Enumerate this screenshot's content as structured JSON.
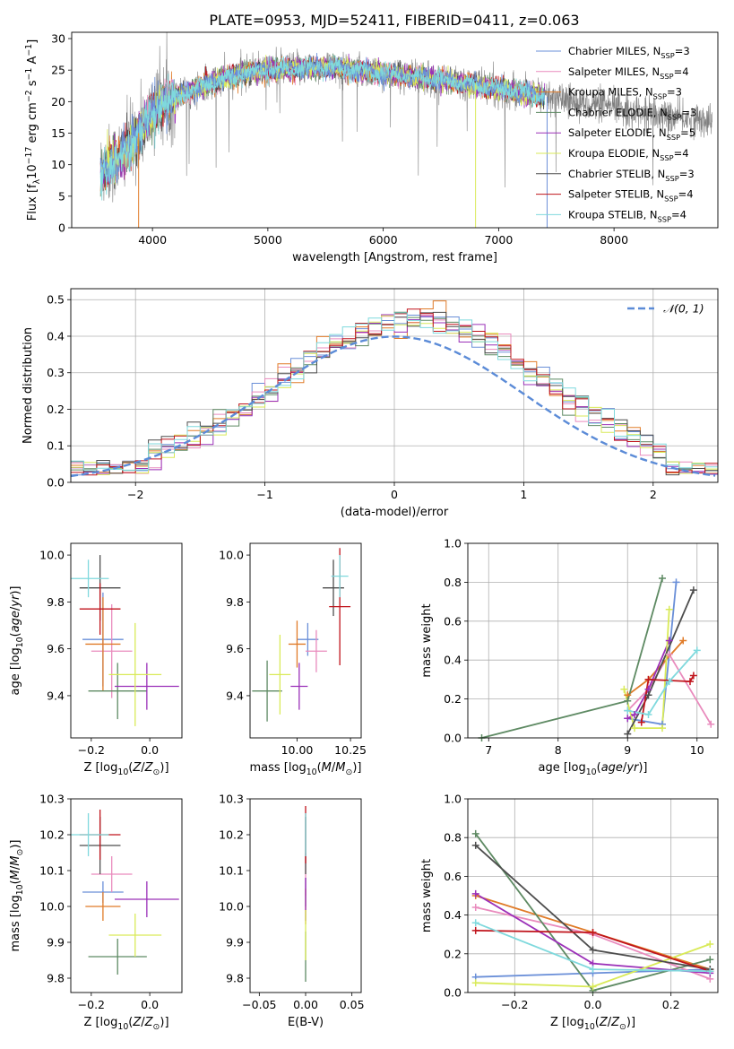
{
  "figure_title": "PLATE=0953, MJD=52411, FIBERID=0411, z=0.063",
  "colors": {
    "series": [
      "#6a8fd8",
      "#e98bbd",
      "#e07b28",
      "#5e8a63",
      "#9b30b8",
      "#d9ea58",
      "#4d4d4d",
      "#c0141c",
      "#7fd9dd"
    ],
    "normal": "#5b8bd7",
    "grid": "#b0b0b0",
    "spectrum_gray": "#808080"
  },
  "legend_names": [
    "Chabrier MILES, N<sub>SSP</sub>=3",
    "Salpeter MILES, N<sub>SSP</sub>=4",
    "Kroupa MILES, N<sub>SSP</sub>=3",
    "Chabrier ELODIE, N<sub>SSP</sub>=3",
    "Salpeter ELODIE, N<sub>SSP</sub>=5",
    "Kroupa ELODIE, N<sub>SSP</sub>=4",
    "Chabrier STELIB, N<sub>SSP</sub>=3",
    "Salpeter STELIB, N<sub>SSP</sub>=4",
    "Kroupa STELIB, N<sub>SSP</sub>=4"
  ],
  "chart_data": [
    {
      "id": "spectrum",
      "type": "line",
      "xlabel": "wavelength [Angstrom, rest frame]",
      "ylabel": "Flux [f<sub>λ</sub>10<sup>−17</sup> erg cm<sup>−2</sup> s<sup>−1</sup> A<sup>−1</sup>]",
      "xlim": [
        3300,
        8900
      ],
      "ylim": [
        0,
        31
      ],
      "xticks": [
        4000,
        5000,
        6000,
        7000,
        8000
      ],
      "yticks": [
        0,
        5,
        10,
        15,
        20,
        25,
        30
      ],
      "grid": false,
      "legend": "upper right",
      "continuum_points": [
        [
          3550,
          9
        ],
        [
          3700,
          11
        ],
        [
          3800,
          13
        ],
        [
          3900,
          15.5
        ],
        [
          4000,
          18
        ],
        [
          4100,
          20
        ],
        [
          4300,
          21.5
        ],
        [
          4600,
          23.5
        ],
        [
          4800,
          24.5
        ],
        [
          5000,
          25
        ],
        [
          5500,
          25.5
        ],
        [
          6000,
          24.5
        ],
        [
          6500,
          23.5
        ],
        [
          7000,
          22
        ],
        [
          7500,
          20.5
        ],
        [
          8000,
          19
        ],
        [
          8500,
          17.5
        ],
        [
          8850,
          17
        ]
      ],
      "data_range": [
        3550,
        8850
      ],
      "model_range": [
        3550,
        7400
      ]
    },
    {
      "id": "residuals",
      "type": "step",
      "xlabel": "(data-model)/error",
      "ylabel": "Normed distribution",
      "xlim": [
        -2.5,
        2.5
      ],
      "ylim": [
        0,
        0.53
      ],
      "xticks": [
        -2,
        -1,
        0,
        1,
        2
      ],
      "yticks": [
        0.0,
        0.1,
        0.2,
        0.3,
        0.4,
        0.5
      ],
      "grid": true,
      "legend": "upper right",
      "normal_curve_label": "𝒩(0, 1)",
      "normal": {
        "mu": 0.0,
        "sigma": 1.0
      },
      "bin_width": 0.1
    },
    {
      "id": "age_vs_Z",
      "type": "errorbar",
      "xlabel": "Z [log<sub>10</sub>(<i>Z</i>/<i>Z</i><sub>⊙</sub>)]",
      "ylabel": "age  [log<sub>10</sub>(<i>age</i>/<i>yr</i>)]",
      "xlim": [
        -0.27,
        0.11
      ],
      "ylim": [
        9.22,
        10.05
      ],
      "xticks": [
        -0.2,
        0.0
      ],
      "yticks": [
        9.4,
        9.6,
        9.8,
        10.0
      ],
      "points": [
        {
          "x": -0.16,
          "y": 9.64,
          "xerr": 0.07,
          "yerr": 0.2
        },
        {
          "x": -0.13,
          "y": 9.59,
          "xerr": 0.07,
          "yerr": 0.2
        },
        {
          "x": -0.16,
          "y": 9.62,
          "xerr": 0.06,
          "yerr": 0.2
        },
        {
          "x": -0.11,
          "y": 9.42,
          "xerr": 0.1,
          "yerr": 0.12
        },
        {
          "x": -0.01,
          "y": 9.44,
          "xerr": 0.11,
          "yerr": 0.1
        },
        {
          "x": -0.05,
          "y": 9.49,
          "xerr": 0.09,
          "yerr": 0.22
        },
        {
          "x": -0.17,
          "y": 9.86,
          "xerr": 0.07,
          "yerr": 0.14
        },
        {
          "x": -0.17,
          "y": 9.77,
          "xerr": 0.07,
          "yerr": 0.11
        },
        {
          "x": -0.21,
          "y": 9.9,
          "xerr": 0.07,
          "yerr": 0.08
        }
      ]
    },
    {
      "id": "age_vs_mass",
      "type": "errorbar",
      "xlabel": "mass [log<sub>10</sub>(<i>M</i>/<i>M</i><sub>⊙</sub>)]",
      "ylabel": "",
      "xlim": [
        9.78,
        10.3
      ],
      "ylim": [
        9.22,
        10.05
      ],
      "xticks": [
        10.0,
        10.25
      ],
      "xticklabels": [
        "10.00",
        "10.25"
      ],
      "yticks": [
        9.4,
        9.6,
        9.8,
        10.0
      ],
      "points": [
        {
          "x": 10.05,
          "y": 9.64,
          "xerr": 0.05,
          "yerr": 0.07
        },
        {
          "x": 10.09,
          "y": 9.59,
          "xerr": 0.05,
          "yerr": 0.09
        },
        {
          "x": 10.0,
          "y": 9.62,
          "xerr": 0.04,
          "yerr": 0.1
        },
        {
          "x": 9.86,
          "y": 9.42,
          "xerr": 0.07,
          "yerr": 0.13
        },
        {
          "x": 10.01,
          "y": 9.44,
          "xerr": 0.04,
          "yerr": 0.1
        },
        {
          "x": 9.92,
          "y": 9.49,
          "xerr": 0.05,
          "yerr": 0.17
        },
        {
          "x": 10.17,
          "y": 9.86,
          "xerr": 0.05,
          "yerr": 0.12
        },
        {
          "x": 10.2,
          "y": 9.78,
          "xerr": 0.05,
          "yerr": 0.25
        },
        {
          "x": 10.2,
          "y": 9.91,
          "xerr": 0.04,
          "yerr": 0.09
        }
      ]
    },
    {
      "id": "weight_vs_age",
      "type": "line",
      "xlabel": "age  [log<sub>10</sub>(<i>age</i>/<i>yr</i>)]",
      "ylabel": "mass weight",
      "xlim": [
        6.7,
        10.3
      ],
      "ylim": [
        0,
        1.0
      ],
      "xticks": [
        7,
        8,
        9,
        10
      ],
      "yticks": [
        0.0,
        0.2,
        0.4,
        0.6,
        0.8,
        1.0
      ],
      "grid": true,
      "series": [
        {
          "points": [
            [
              9.0,
              0.1
            ],
            [
              9.5,
              0.07
            ],
            [
              9.7,
              0.8
            ]
          ]
        },
        {
          "points": [
            [
              9.0,
              0.14
            ],
            [
              9.3,
              0.25
            ],
            [
              9.6,
              0.43
            ],
            [
              10.2,
              0.07
            ]
          ]
        },
        {
          "points": [
            [
              9.0,
              0.22
            ],
            [
              9.3,
              0.3
            ],
            [
              9.8,
              0.5
            ]
          ]
        },
        {
          "points": [
            [
              6.9,
              0.0
            ],
            [
              9.0,
              0.19
            ],
            [
              9.5,
              0.82
            ]
          ]
        },
        {
          "points": [
            [
              9.0,
              0.1
            ],
            [
              9.1,
              0.12
            ],
            [
              9.3,
              0.25
            ],
            [
              9.6,
              0.5
            ]
          ]
        },
        {
          "points": [
            [
              8.95,
              0.25
            ],
            [
              9.1,
              0.05
            ],
            [
              9.5,
              0.05
            ],
            [
              9.6,
              0.66
            ]
          ]
        },
        {
          "points": [
            [
              9.0,
              0.02
            ],
            [
              9.3,
              0.22
            ],
            [
              9.95,
              0.76
            ]
          ]
        },
        {
          "points": [
            [
              9.2,
              0.08
            ],
            [
              9.3,
              0.3
            ],
            [
              9.9,
              0.29
            ],
            [
              9.95,
              0.32
            ]
          ]
        },
        {
          "points": [
            [
              9.0,
              0.14
            ],
            [
              9.3,
              0.12
            ],
            [
              9.6,
              0.29
            ],
            [
              10.0,
              0.45
            ]
          ]
        }
      ]
    },
    {
      "id": "mass_vs_Z",
      "type": "errorbar",
      "xlabel": "Z [log<sub>10</sub>(<i>Z</i>/<i>Z</i><sub>⊙</sub>)]",
      "ylabel": "mass [log<sub>10</sub>(<i>M</i>/<i>M</i><sub>⊙</sub>)]",
      "xlim": [
        -0.27,
        0.11
      ],
      "ylim": [
        9.76,
        10.3
      ],
      "xticks": [
        -0.2,
        0.0
      ],
      "yticks": [
        9.8,
        9.9,
        10.0,
        10.1,
        10.2,
        10.3
      ],
      "points": [
        {
          "x": -0.16,
          "y": 10.04,
          "xerr": 0.07,
          "yerr": 0.03
        },
        {
          "x": -0.13,
          "y": 10.09,
          "xerr": 0.07,
          "yerr": 0.05
        },
        {
          "x": -0.16,
          "y": 10.0,
          "xerr": 0.06,
          "yerr": 0.04
        },
        {
          "x": -0.11,
          "y": 9.86,
          "xerr": 0.1,
          "yerr": 0.05
        },
        {
          "x": -0.01,
          "y": 10.02,
          "xerr": 0.11,
          "yerr": 0.05
        },
        {
          "x": -0.05,
          "y": 9.92,
          "xerr": 0.09,
          "yerr": 0.06
        },
        {
          "x": -0.17,
          "y": 10.17,
          "xerr": 0.07,
          "yerr": 0.08
        },
        {
          "x": -0.17,
          "y": 10.2,
          "xerr": 0.07,
          "yerr": 0.07
        },
        {
          "x": -0.21,
          "y": 10.2,
          "xerr": 0.07,
          "yerr": 0.06
        }
      ]
    },
    {
      "id": "mass_vs_ebv",
      "type": "errorbar",
      "xlabel": "E(B-V)",
      "ylabel": "",
      "xlim": [
        -0.06,
        0.06
      ],
      "ylim": [
        9.76,
        10.3
      ],
      "xticks": [
        -0.05,
        0.0,
        0.05
      ],
      "xticklabels": [
        "−0.05",
        "0.00",
        "0.05"
      ],
      "yticks": [
        9.8,
        9.9,
        10.0,
        10.1,
        10.2,
        10.3
      ],
      "points": [
        {
          "x": 0.0,
          "y": 10.04,
          "xerr": 0.0,
          "yerr": 0.04
        },
        {
          "x": 0.0,
          "y": 10.09,
          "xerr": 0.0,
          "yerr": 0.06
        },
        {
          "x": 0.0,
          "y": 10.0,
          "xerr": 0.0,
          "yerr": 0.05
        },
        {
          "x": 0.0,
          "y": 9.86,
          "xerr": 0.0,
          "yerr": 0.07
        },
        {
          "x": 0.0,
          "y": 10.02,
          "xerr": 0.0,
          "yerr": 0.06
        },
        {
          "x": 0.0,
          "y": 9.92,
          "xerr": 0.0,
          "yerr": 0.07
        },
        {
          "x": 0.0,
          "y": 10.17,
          "xerr": 0.0,
          "yerr": 0.08
        },
        {
          "x": 0.0,
          "y": 10.2,
          "xerr": 0.0,
          "yerr": 0.08
        },
        {
          "x": 0.0,
          "y": 10.2,
          "xerr": 0.0,
          "yerr": 0.06
        }
      ]
    },
    {
      "id": "weight_vs_Z",
      "type": "line",
      "xlabel": "Z [log<sub>10</sub>(<i>Z</i>/<i>Z</i><sub>⊙</sub>)]",
      "ylabel": "mass weight",
      "xlim": [
        -0.32,
        0.32
      ],
      "ylim": [
        0,
        1.0
      ],
      "xticks": [
        -0.2,
        0.0,
        0.2
      ],
      "yticks": [
        0.0,
        0.2,
        0.4,
        0.6,
        0.8,
        1.0
      ],
      "grid": true,
      "series": [
        {
          "points": [
            [
              -0.3,
              0.08
            ],
            [
              0.0,
              0.1
            ],
            [
              0.3,
              0.12
            ]
          ]
        },
        {
          "points": [
            [
              -0.3,
              0.44
            ],
            [
              0.0,
              0.3
            ],
            [
              0.3,
              0.07
            ]
          ]
        },
        {
          "points": [
            [
              -0.3,
              0.5
            ],
            [
              0.0,
              0.31
            ],
            [
              0.3,
              0.12
            ]
          ]
        },
        {
          "points": [
            [
              -0.3,
              0.82
            ],
            [
              0.0,
              0.01
            ],
            [
              0.3,
              0.17
            ]
          ]
        },
        {
          "points": [
            [
              -0.3,
              0.51
            ],
            [
              0.0,
              0.15
            ],
            [
              0.3,
              0.1
            ]
          ]
        },
        {
          "points": [
            [
              -0.3,
              0.05
            ],
            [
              0.0,
              0.03
            ],
            [
              0.3,
              0.25
            ]
          ]
        },
        {
          "points": [
            [
              -0.3,
              0.76
            ],
            [
              0.0,
              0.22
            ],
            [
              0.3,
              0.12
            ]
          ]
        },
        {
          "points": [
            [
              -0.3,
              0.32
            ],
            [
              0.0,
              0.31
            ],
            [
              0.3,
              0.11
            ]
          ]
        },
        {
          "points": [
            [
              -0.3,
              0.36
            ],
            [
              0.0,
              0.12
            ],
            [
              0.3,
              0.11
            ]
          ]
        }
      ]
    }
  ]
}
